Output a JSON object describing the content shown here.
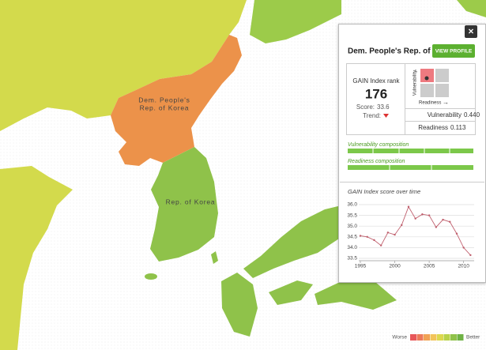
{
  "map": {
    "north_label": [
      "Dem. People's",
      "Rep. of Korea"
    ],
    "south_label": "Rep. of Korea"
  },
  "panel": {
    "title": "Dem. People's Rep. of Korea",
    "button": "VIEW PROFILE",
    "rank_label": "GAIN Index rank",
    "rank": 176,
    "score_label": "Score:",
    "score": 33.6,
    "trend_label": "Trend:",
    "matrix_y_label": "Vulnerability",
    "matrix_x_label": "Readiness",
    "vulnerability_label": "Vulnerability",
    "vulnerability": "0.440",
    "readiness_label": "Readiness",
    "readiness": "0.113",
    "vulnerability_composition": "Vulnerability composition",
    "readiness_composition": "Readiness composition"
  },
  "chart_data": {
    "type": "line",
    "title": "GAIN Index score over time",
    "x": [
      1995,
      1996,
      1997,
      1998,
      1999,
      2000,
      2001,
      2002,
      2003,
      2004,
      2005,
      2006,
      2007,
      2008,
      2009,
      2010,
      2011
    ],
    "series": [
      {
        "color": "#c0606e",
        "values": [
          34.55,
          34.5,
          34.35,
          34.1,
          34.7,
          34.6,
          35.05,
          35.9,
          35.35,
          35.55,
          35.5,
          34.95,
          35.3,
          35.2,
          34.65,
          34.0,
          33.65
        ]
      }
    ],
    "xlim": [
      1995,
      2011.3
    ],
    "xticks": [
      1995,
      2000,
      2005,
      2010
    ],
    "ylim": [
      33.5,
      36.0
    ],
    "yticks": [
      33.5,
      {
        "value": 34,
        "label": "34.0"
      },
      34.5,
      {
        "value": 35,
        "label": "35.0"
      },
      35.5,
      {
        "value": 36,
        "label": "36.0"
      }
    ],
    "grid": true
  },
  "legend": {
    "worse": "Worse",
    "better": "Better",
    "colors": [
      "#e8575a",
      "#ec7a5a",
      "#f0a255",
      "#f2c45a",
      "#dcd84e",
      "#b8d24a",
      "#8fc24a",
      "#6fb245"
    ]
  }
}
